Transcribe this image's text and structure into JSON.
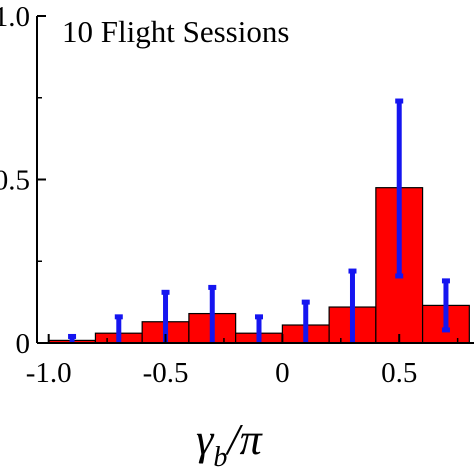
{
  "chart_data": {
    "type": "bar",
    "title": "10 Flight Sessions",
    "xlabel_main": "γ",
    "xlabel_sub": "b",
    "xlabel_tail": "/π",
    "ylabel": "",
    "xlim": [
      -1.05,
      0.82
    ],
    "ylim": [
      0,
      1.0
    ],
    "x_ticks": [
      -1.0,
      -0.5,
      0,
      0.5
    ],
    "x_tick_labels": [
      "-1.0",
      "-0.5",
      "0",
      "0.5"
    ],
    "y_ticks": [
      0,
      0.5,
      1.0
    ],
    "y_tick_labels": [
      "0",
      "0.5",
      "1.0"
    ],
    "bin_width": 0.2,
    "bins": [
      {
        "x": -0.9,
        "value": 0.008,
        "err_low": 0.0,
        "err_high": 0.02
      },
      {
        "x": -0.7,
        "value": 0.03,
        "err_low": 0.0,
        "err_high": 0.08
      },
      {
        "x": -0.5,
        "value": 0.065,
        "err_low": 0.0,
        "err_high": 0.155
      },
      {
        "x": -0.3,
        "value": 0.09,
        "err_low": 0.0,
        "err_high": 0.17
      },
      {
        "x": -0.1,
        "value": 0.03,
        "err_low": 0.0,
        "err_high": 0.08
      },
      {
        "x": 0.1,
        "value": 0.055,
        "err_low": 0.0,
        "err_high": 0.125
      },
      {
        "x": 0.3,
        "value": 0.11,
        "err_low": 0.0,
        "err_high": 0.22
      },
      {
        "x": 0.5,
        "value": 0.475,
        "err_low": 0.205,
        "err_high": 0.74
      },
      {
        "x": 0.7,
        "value": 0.115,
        "err_low": 0.04,
        "err_high": 0.19
      }
    ],
    "colors": {
      "bar": "#ff0000",
      "bar_edge": "#000000",
      "error": "#1515f0"
    }
  }
}
